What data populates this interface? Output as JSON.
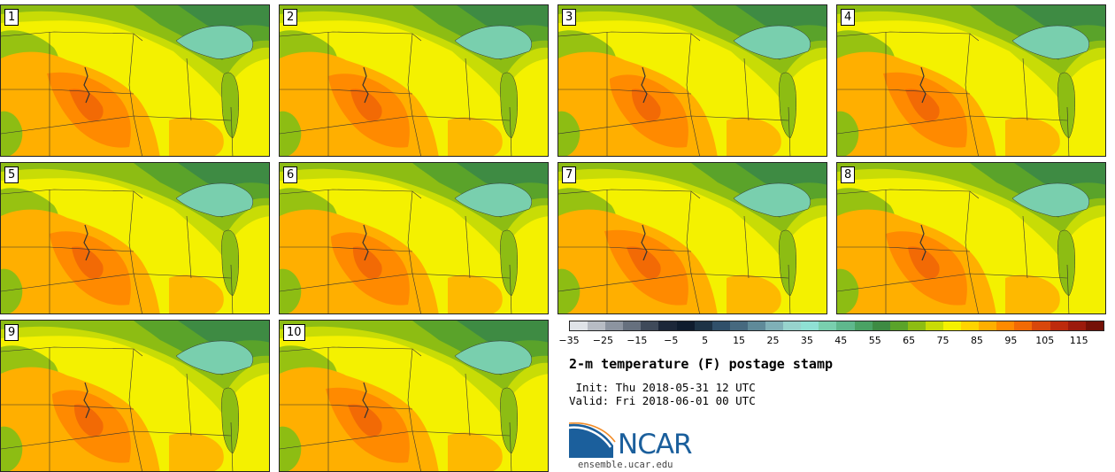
{
  "product_title": "2-m temperature (F) postage stamp",
  "init_text": " Init: Thu 2018-05-31 12 UTC",
  "valid_text": "Valid: Fri 2018-06-01 00 UTC",
  "members": [
    "1",
    "2",
    "3",
    "4",
    "5",
    "6",
    "7",
    "8",
    "9",
    "10"
  ],
  "colorbar": {
    "tick_labels": [
      "−35",
      "−25",
      "−15",
      "−5",
      "5",
      "15",
      "25",
      "35",
      "45",
      "55",
      "65",
      "75",
      "85",
      "95",
      "105",
      "115"
    ],
    "colors": [
      "#dfe3e8",
      "#b7bcc4",
      "#8c94a0",
      "#66707e",
      "#3f4a5a",
      "#1c2739",
      "#0f1c2e",
      "#1d3346",
      "#30506a",
      "#46697f",
      "#5f8a99",
      "#7fb0b7",
      "#97d3cd",
      "#8fe0d4",
      "#79cfae",
      "#5fb88d",
      "#4aa264",
      "#3e8b43",
      "#5aa32a",
      "#8dbd13",
      "#c8dc06",
      "#f4f100",
      "#ffd300",
      "#ffaf00",
      "#ff8a00",
      "#f26a05",
      "#d8470b",
      "#bd2a0c",
      "#9c1a0c",
      "#741007"
    ]
  },
  "logo": {
    "name": "NCAR",
    "url": "ensemble.ucar.edu"
  },
  "palette": {
    "yellow": "#f4f100",
    "yellow_green": "#c8dc06",
    "light_green": "#8dbd13",
    "green": "#5aa32a",
    "dark_green": "#3e8b43",
    "teal": "#79cfae",
    "orange": "#ffaf00",
    "dark_orange": "#ff8a00",
    "red_orange": "#f26a05"
  }
}
